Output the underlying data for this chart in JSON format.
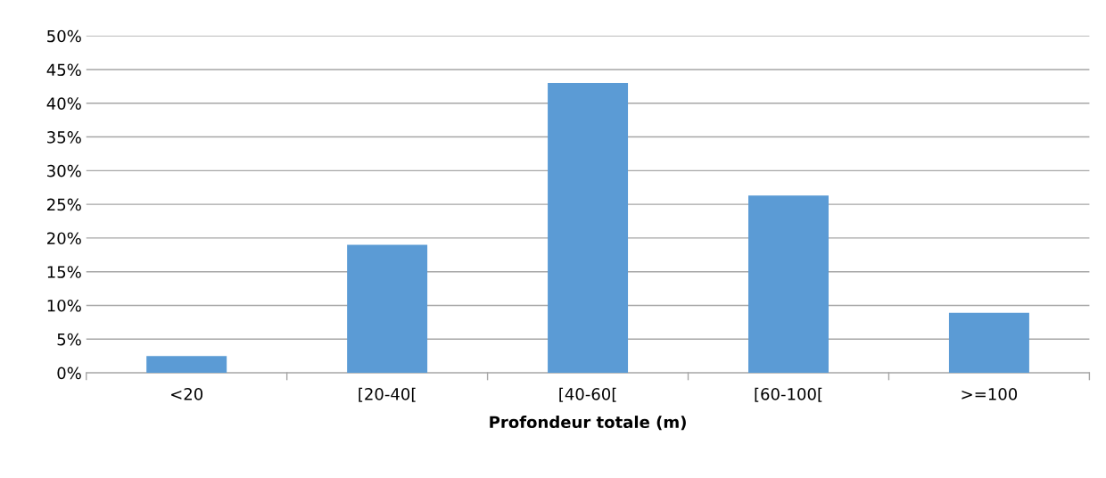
{
  "chart_data": {
    "type": "bar",
    "xlabel": "Profondeur totale (m)",
    "categories": [
      "<20",
      "[20-40[",
      "[40-60[",
      "[60-100[",
      ">=100"
    ],
    "values": [
      2.5,
      19,
      43,
      26.3,
      8.9
    ],
    "color": "#5b9bd5",
    "ylim": [
      0,
      50
    ],
    "yticks": [
      {
        "value": 0,
        "label": "0%"
      },
      {
        "value": 5,
        "label": "5%"
      },
      {
        "value": 10,
        "label": "10%"
      },
      {
        "value": 15,
        "label": "15%"
      },
      {
        "value": 20,
        "label": "20%"
      },
      {
        "value": 25,
        "label": "25%"
      },
      {
        "value": 30,
        "label": "30%"
      },
      {
        "value": 35,
        "label": "35%"
      },
      {
        "value": 40,
        "label": "40%"
      },
      {
        "value": 45,
        "label": "45%"
      },
      {
        "value": 50,
        "label": "50%"
      }
    ],
    "grid": "y"
  }
}
